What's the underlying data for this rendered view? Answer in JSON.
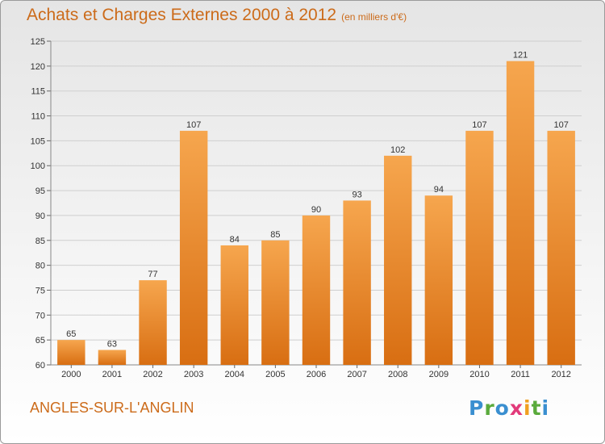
{
  "header": {
    "title": "Achats et Charges Externes 2000 à 2012",
    "subtitle": "(en milliers d'€)"
  },
  "footer": {
    "commune": "ANGLES-SUR-L'ANGLIN",
    "logo_letters": [
      {
        "ch": "P",
        "color": "#3a8fd0"
      },
      {
        "ch": "r",
        "color": "#5aaa3c"
      },
      {
        "ch": "o",
        "color": "#3a8fd0"
      },
      {
        "ch": "x",
        "color": "#e23a7a"
      },
      {
        "ch": "i",
        "color": "#f0a020"
      },
      {
        "ch": "t",
        "color": "#5aaa3c"
      },
      {
        "ch": "i",
        "color": "#3a8fd0"
      }
    ]
  },
  "colors": {
    "bar_top": "#f6a64e",
    "bar_bottom": "#d86e12",
    "accent": "#cc6b1a"
  },
  "chart_data": {
    "type": "bar",
    "title": "Achats et Charges Externes 2000 à 2012",
    "subtitle": "(en milliers d'€)",
    "categories": [
      "2000",
      "2001",
      "2002",
      "2003",
      "2004",
      "2005",
      "2006",
      "2007",
      "2008",
      "2009",
      "2010",
      "2011",
      "2012"
    ],
    "values": [
      65,
      63,
      77,
      107,
      84,
      85,
      90,
      93,
      102,
      94,
      107,
      121,
      107
    ],
    "ylim": [
      60,
      125
    ],
    "yticks": [
      60,
      65,
      70,
      75,
      80,
      85,
      90,
      95,
      100,
      105,
      110,
      115,
      120,
      125
    ],
    "grid": true,
    "data_labels": true
  }
}
